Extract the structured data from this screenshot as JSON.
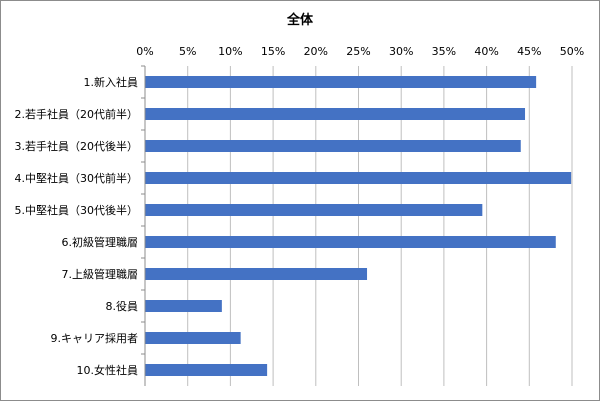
{
  "chart_data": {
    "type": "bar",
    "orientation": "horizontal",
    "title": "全体",
    "xlabel": "",
    "ylabel": "",
    "xlim": [
      0,
      0.5
    ],
    "x_ticks": [
      "0%",
      "5%",
      "10%",
      "15%",
      "20%",
      "25%",
      "30%",
      "35%",
      "40%",
      "45%",
      "50%"
    ],
    "x_axis_position": "top",
    "grid": true,
    "legend": "none",
    "categories": [
      "1.新入社員",
      "2.若手社員（20代前半）",
      "3.若手社員（20代後半）",
      "4.中堅社員（30代前半）",
      "5.中堅社員（30代後半）",
      "6.初級管理職層",
      "7.上級管理職層",
      "8.役員",
      "9.キャリア採用者",
      "10.女性社員"
    ],
    "values": [
      0.458,
      0.445,
      0.44,
      0.499,
      0.395,
      0.481,
      0.26,
      0.09,
      0.112,
      0.143
    ],
    "bar_color": "#4472c4",
    "grid_color": "#bfbfbf"
  }
}
